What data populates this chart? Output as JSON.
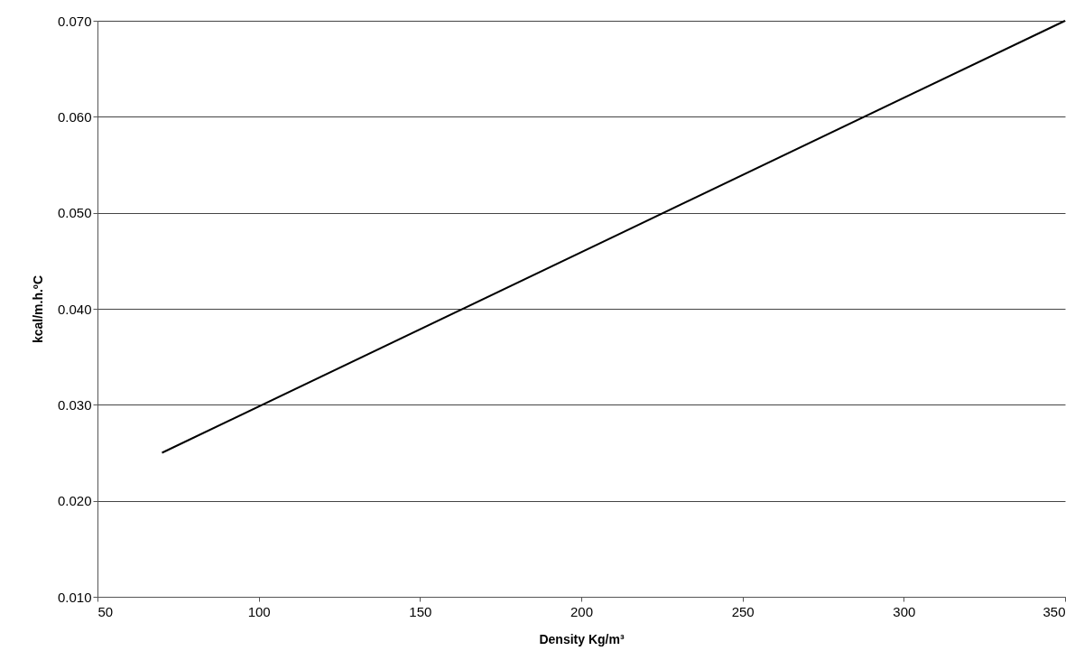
{
  "chart_data": {
    "type": "line",
    "xlabel": "Density Kg/m³",
    "ylabel": "kcal/m.h.ºC",
    "x": [
      70,
      350
    ],
    "series": [
      {
        "color": "#000000",
        "values": [
          0.025,
          0.07
        ]
      }
    ],
    "xlim": [
      50,
      350
    ],
    "xticks": [
      50,
      100,
      150,
      200,
      250,
      300,
      350
    ],
    "ylim": [
      0.01,
      0.07
    ],
    "yticks": [
      {
        "value": 0.01,
        "label": "0.010"
      },
      {
        "value": 0.02,
        "label": "0.020"
      },
      {
        "value": 0.03,
        "label": "0.030"
      },
      {
        "value": 0.04,
        "label": "0.040"
      },
      {
        "value": 0.05,
        "label": "0.050"
      },
      {
        "value": 0.06,
        "label": "0.060"
      },
      {
        "value": 0.07,
        "label": "0.070"
      }
    ],
    "grid": "y",
    "marker": "none",
    "line_style": "solid",
    "legend": false
  }
}
